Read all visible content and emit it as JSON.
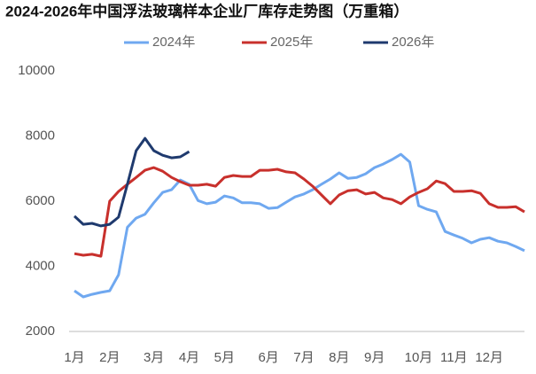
{
  "chart_data": {
    "type": "line",
    "title": "2024-2026年中国浮法玻璃样本企业厂库存走势图（万重箱）",
    "categories": [
      "1月",
      null,
      null,
      null,
      "2月",
      null,
      null,
      null,
      null,
      "3月",
      null,
      null,
      null,
      "4月",
      null,
      null,
      null,
      "5月",
      null,
      null,
      null,
      null,
      "6月",
      null,
      null,
      null,
      "7月",
      null,
      null,
      null,
      "8月",
      null,
      null,
      null,
      "9月",
      null,
      null,
      null,
      null,
      "10月",
      null,
      null,
      null,
      "11月",
      null,
      null,
      null,
      "12月",
      null,
      null,
      null,
      null
    ],
    "series": [
      {
        "name": "2024年",
        "color": "#6fa8f0",
        "values": [
          3250,
          3060,
          3140,
          3200,
          3250,
          3740,
          5200,
          5480,
          5600,
          5950,
          6270,
          6350,
          6650,
          6520,
          6020,
          5920,
          5970,
          6160,
          6100,
          5950,
          5950,
          5920,
          5780,
          5800,
          5970,
          6130,
          6220,
          6350,
          6520,
          6680,
          6870,
          6700,
          6730,
          6840,
          7030,
          7140,
          7280,
          7440,
          7200,
          5860,
          5750,
          5670,
          5070,
          4960,
          4860,
          4720,
          4830,
          4880,
          4770,
          4720,
          4610,
          4480
        ]
      },
      {
        "name": "2025年",
        "color": "#c8302c",
        "values": [
          4390,
          4340,
          4370,
          4310,
          6000,
          6300,
          6520,
          6730,
          6950,
          7030,
          6920,
          6730,
          6600,
          6490,
          6490,
          6520,
          6460,
          6730,
          6790,
          6760,
          6760,
          6950,
          6950,
          6980,
          6900,
          6870,
          6680,
          6460,
          6190,
          5920,
          6190,
          6320,
          6350,
          6220,
          6270,
          6100,
          6050,
          5920,
          6130,
          6270,
          6380,
          6620,
          6540,
          6300,
          6300,
          6320,
          6240,
          5920,
          5810,
          5810,
          5830,
          5670
        ]
      },
      {
        "name": "2026年",
        "color": "#1f3a6e",
        "values": [
          5540,
          5290,
          5320,
          5240,
          5290,
          5510,
          6520,
          7550,
          7930,
          7550,
          7410,
          7330,
          7360,
          7520,
          null,
          null,
          null,
          null,
          null,
          null,
          null,
          null,
          null,
          null,
          null,
          null,
          null,
          null,
          null,
          null,
          null,
          null,
          null,
          null,
          null,
          null,
          null,
          null,
          null,
          null,
          null,
          null,
          null,
          null,
          null,
          null,
          null,
          null,
          null,
          null,
          null,
          null
        ]
      }
    ],
    "ylim": [
      2000,
      10000
    ],
    "yticks": [
      2000,
      4000,
      6000,
      8000,
      10000
    ],
    "grid": false
  }
}
